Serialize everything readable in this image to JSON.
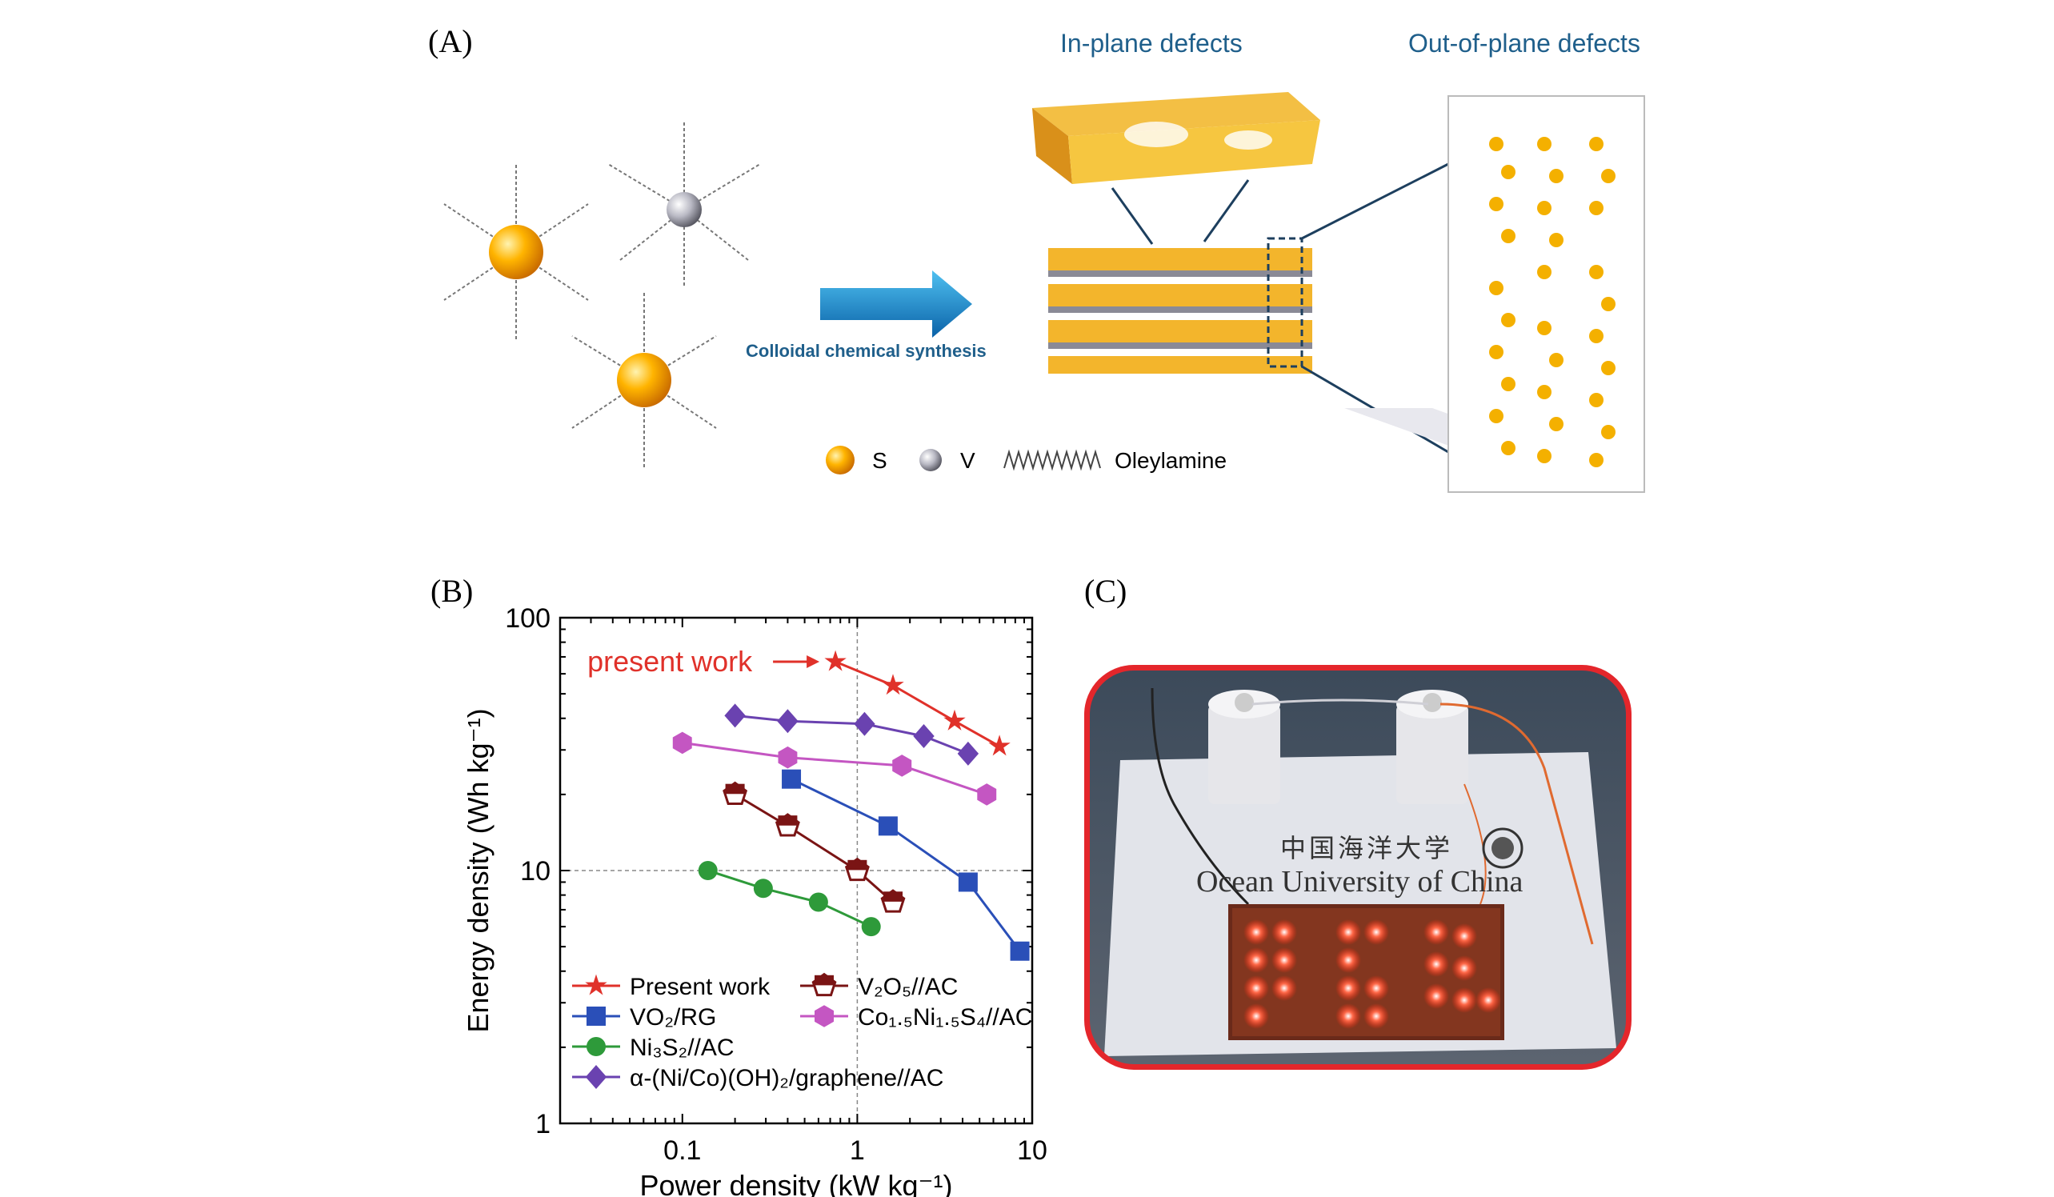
{
  "panel_a": {
    "label": "(A)",
    "in_plane_title": "In-plane defects",
    "out_of_plane_title": "Out-of-plane defects",
    "arrow_caption": "Colloidal chemical synthesis",
    "legend": {
      "s": "S",
      "v": "V",
      "oleylamine": "Oleylamine"
    },
    "colors": {
      "sulfur": "#f5a000",
      "vanadium": "#9a9aa6",
      "title_blue": "#1f5f8b",
      "arrow_blue": "#1a88c9",
      "line_navy": "#1d3f5e"
    }
  },
  "panel_b": {
    "label": "(B)"
  },
  "panel_c": {
    "label": "(C)",
    "sign_chinese": "中国海洋大学",
    "sign_english": "Ocean University of China",
    "colors": {
      "frame": "#e4262b",
      "led": "#ff3a22"
    }
  },
  "chart_data": {
    "type": "scatter",
    "xscale": "log",
    "yscale": "log",
    "xlabel": "Power density (kW kg⁻¹)",
    "ylabel": "Energy density (Wh kg⁻¹)",
    "xlim": [
      0.02,
      10
    ],
    "ylim": [
      1,
      100
    ],
    "xticks": [
      "0.1",
      "1",
      "10"
    ],
    "yticks": [
      "1",
      "10",
      "100"
    ],
    "annotation": "present work",
    "grid": "dashed at 1 and 10",
    "series": [
      {
        "name": "Present work",
        "color": "#e0312a",
        "marker": "star",
        "x": [
          0.75,
          1.6,
          3.6,
          6.5
        ],
        "y": [
          67,
          54,
          39,
          31
        ]
      },
      {
        "name": "V₂O₅//AC",
        "color": "#7a1414",
        "marker": "half-pentagon",
        "x": [
          0.2,
          0.4,
          1.0,
          1.6
        ],
        "y": [
          20,
          15,
          10,
          7.5
        ]
      },
      {
        "name": "VO₂/RG",
        "color": "#2a4fb8",
        "marker": "square",
        "x": [
          0.42,
          1.5,
          4.3,
          8.5
        ],
        "y": [
          23,
          15,
          9,
          4.8
        ]
      },
      {
        "name": "Co₁.₅Ni₁.₅S₄//AC",
        "color": "#c456c2",
        "marker": "hexagon",
        "x": [
          0.1,
          0.4,
          1.8,
          5.5
        ],
        "y": [
          32,
          28,
          26,
          20
        ]
      },
      {
        "name": "Ni₃S₂//AC",
        "color": "#2e9a3a",
        "marker": "circle",
        "x": [
          0.14,
          0.29,
          0.6,
          1.2
        ],
        "y": [
          10,
          8.5,
          7.5,
          6
        ]
      },
      {
        "name": "α-(Ni/Co)(OH)₂/graphene//AC",
        "color": "#6a42b0",
        "marker": "diamond",
        "x": [
          0.2,
          0.4,
          1.1,
          2.4,
          4.3
        ],
        "y": [
          41,
          39,
          38,
          34,
          29
        ]
      }
    ]
  }
}
